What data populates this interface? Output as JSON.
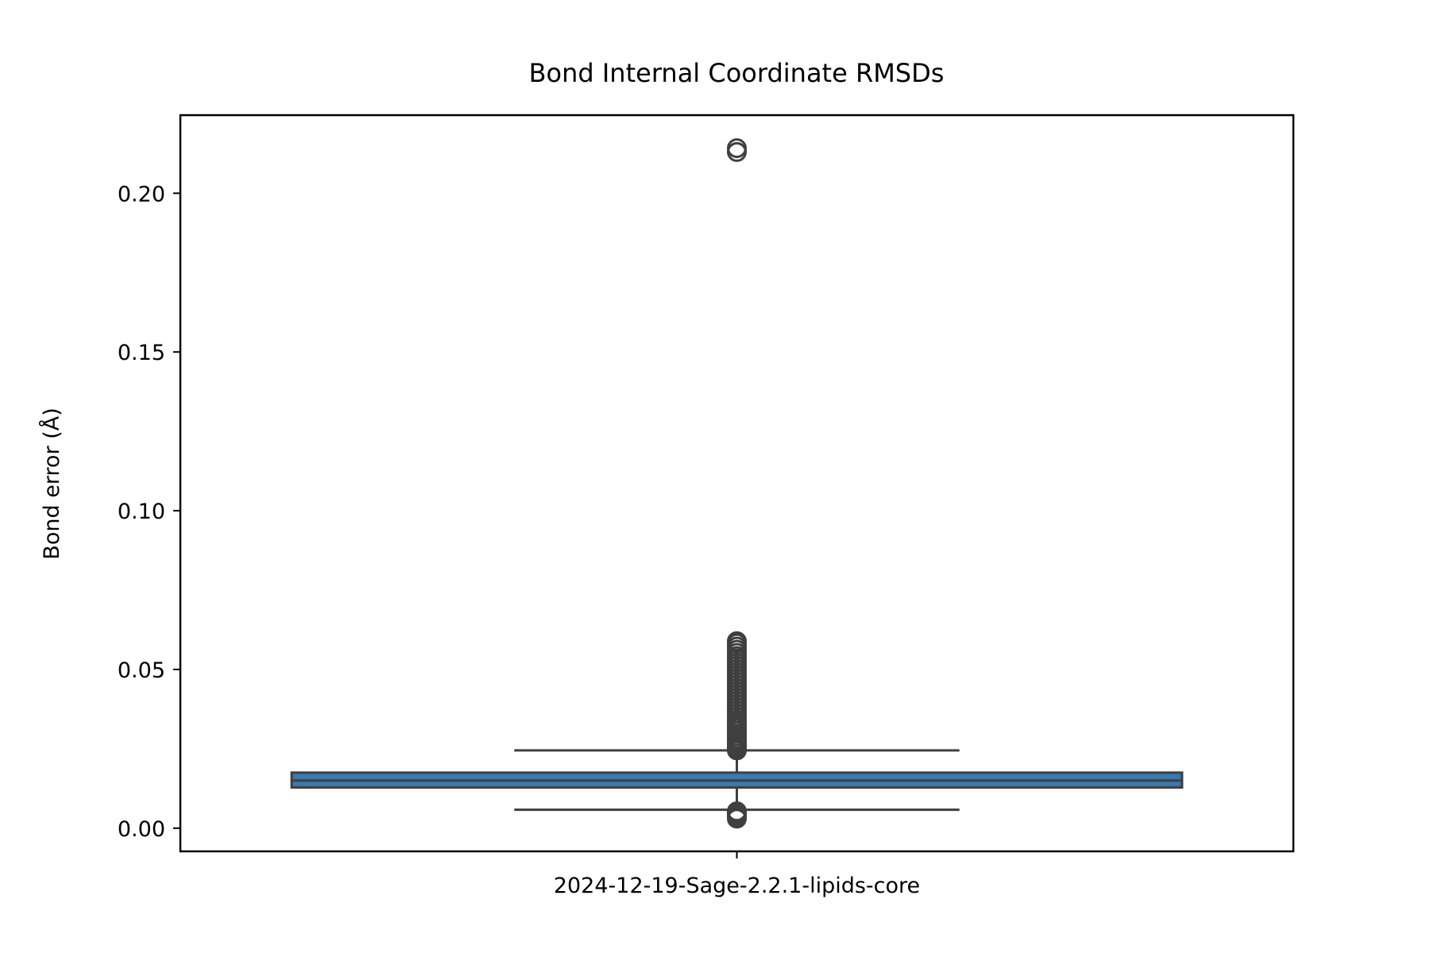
{
  "chart_data": {
    "type": "box",
    "title": "Bond Internal Coordinate RMSDs",
    "xlabel": "",
    "ylabel": "Bond error (Å)",
    "ylim": [
      -0.0073,
      0.2246
    ],
    "yticks": [
      0.0,
      0.05,
      0.1,
      0.15,
      0.2
    ],
    "ytick_labels": [
      "0.00",
      "0.05",
      "0.10",
      "0.15",
      "0.20"
    ],
    "grid": false,
    "legend": "none",
    "categories": [
      "2024-12-19-Sage-2.2.1-lipids-core"
    ],
    "series": [
      {
        "category": "2024-12-19-Sage-2.2.1-lipids-core",
        "whisker_low": 0.0058,
        "q1": 0.0128,
        "median": 0.015,
        "q3": 0.0175,
        "whisker_high": 0.0245,
        "fliers": [
          0.003,
          0.0036,
          0.0042,
          0.0048,
          0.0053,
          0.0245,
          0.025,
          0.0256,
          0.0262,
          0.0268,
          0.0275,
          0.0282,
          0.029,
          0.0298,
          0.0306,
          0.0315,
          0.0324,
          0.0333,
          0.0342,
          0.0352,
          0.0362,
          0.0372,
          0.0382,
          0.0392,
          0.0402,
          0.0412,
          0.0422,
          0.0432,
          0.0442,
          0.0452,
          0.0462,
          0.0472,
          0.0482,
          0.0492,
          0.0502,
          0.0512,
          0.0522,
          0.0532,
          0.0542,
          0.0552,
          0.0562,
          0.0572,
          0.0582,
          0.0589,
          0.213,
          0.2142
        ]
      }
    ],
    "colors": {
      "box_fill": "#3a78b0",
      "lines": "#3f3f3f",
      "axes": "#000000"
    }
  }
}
